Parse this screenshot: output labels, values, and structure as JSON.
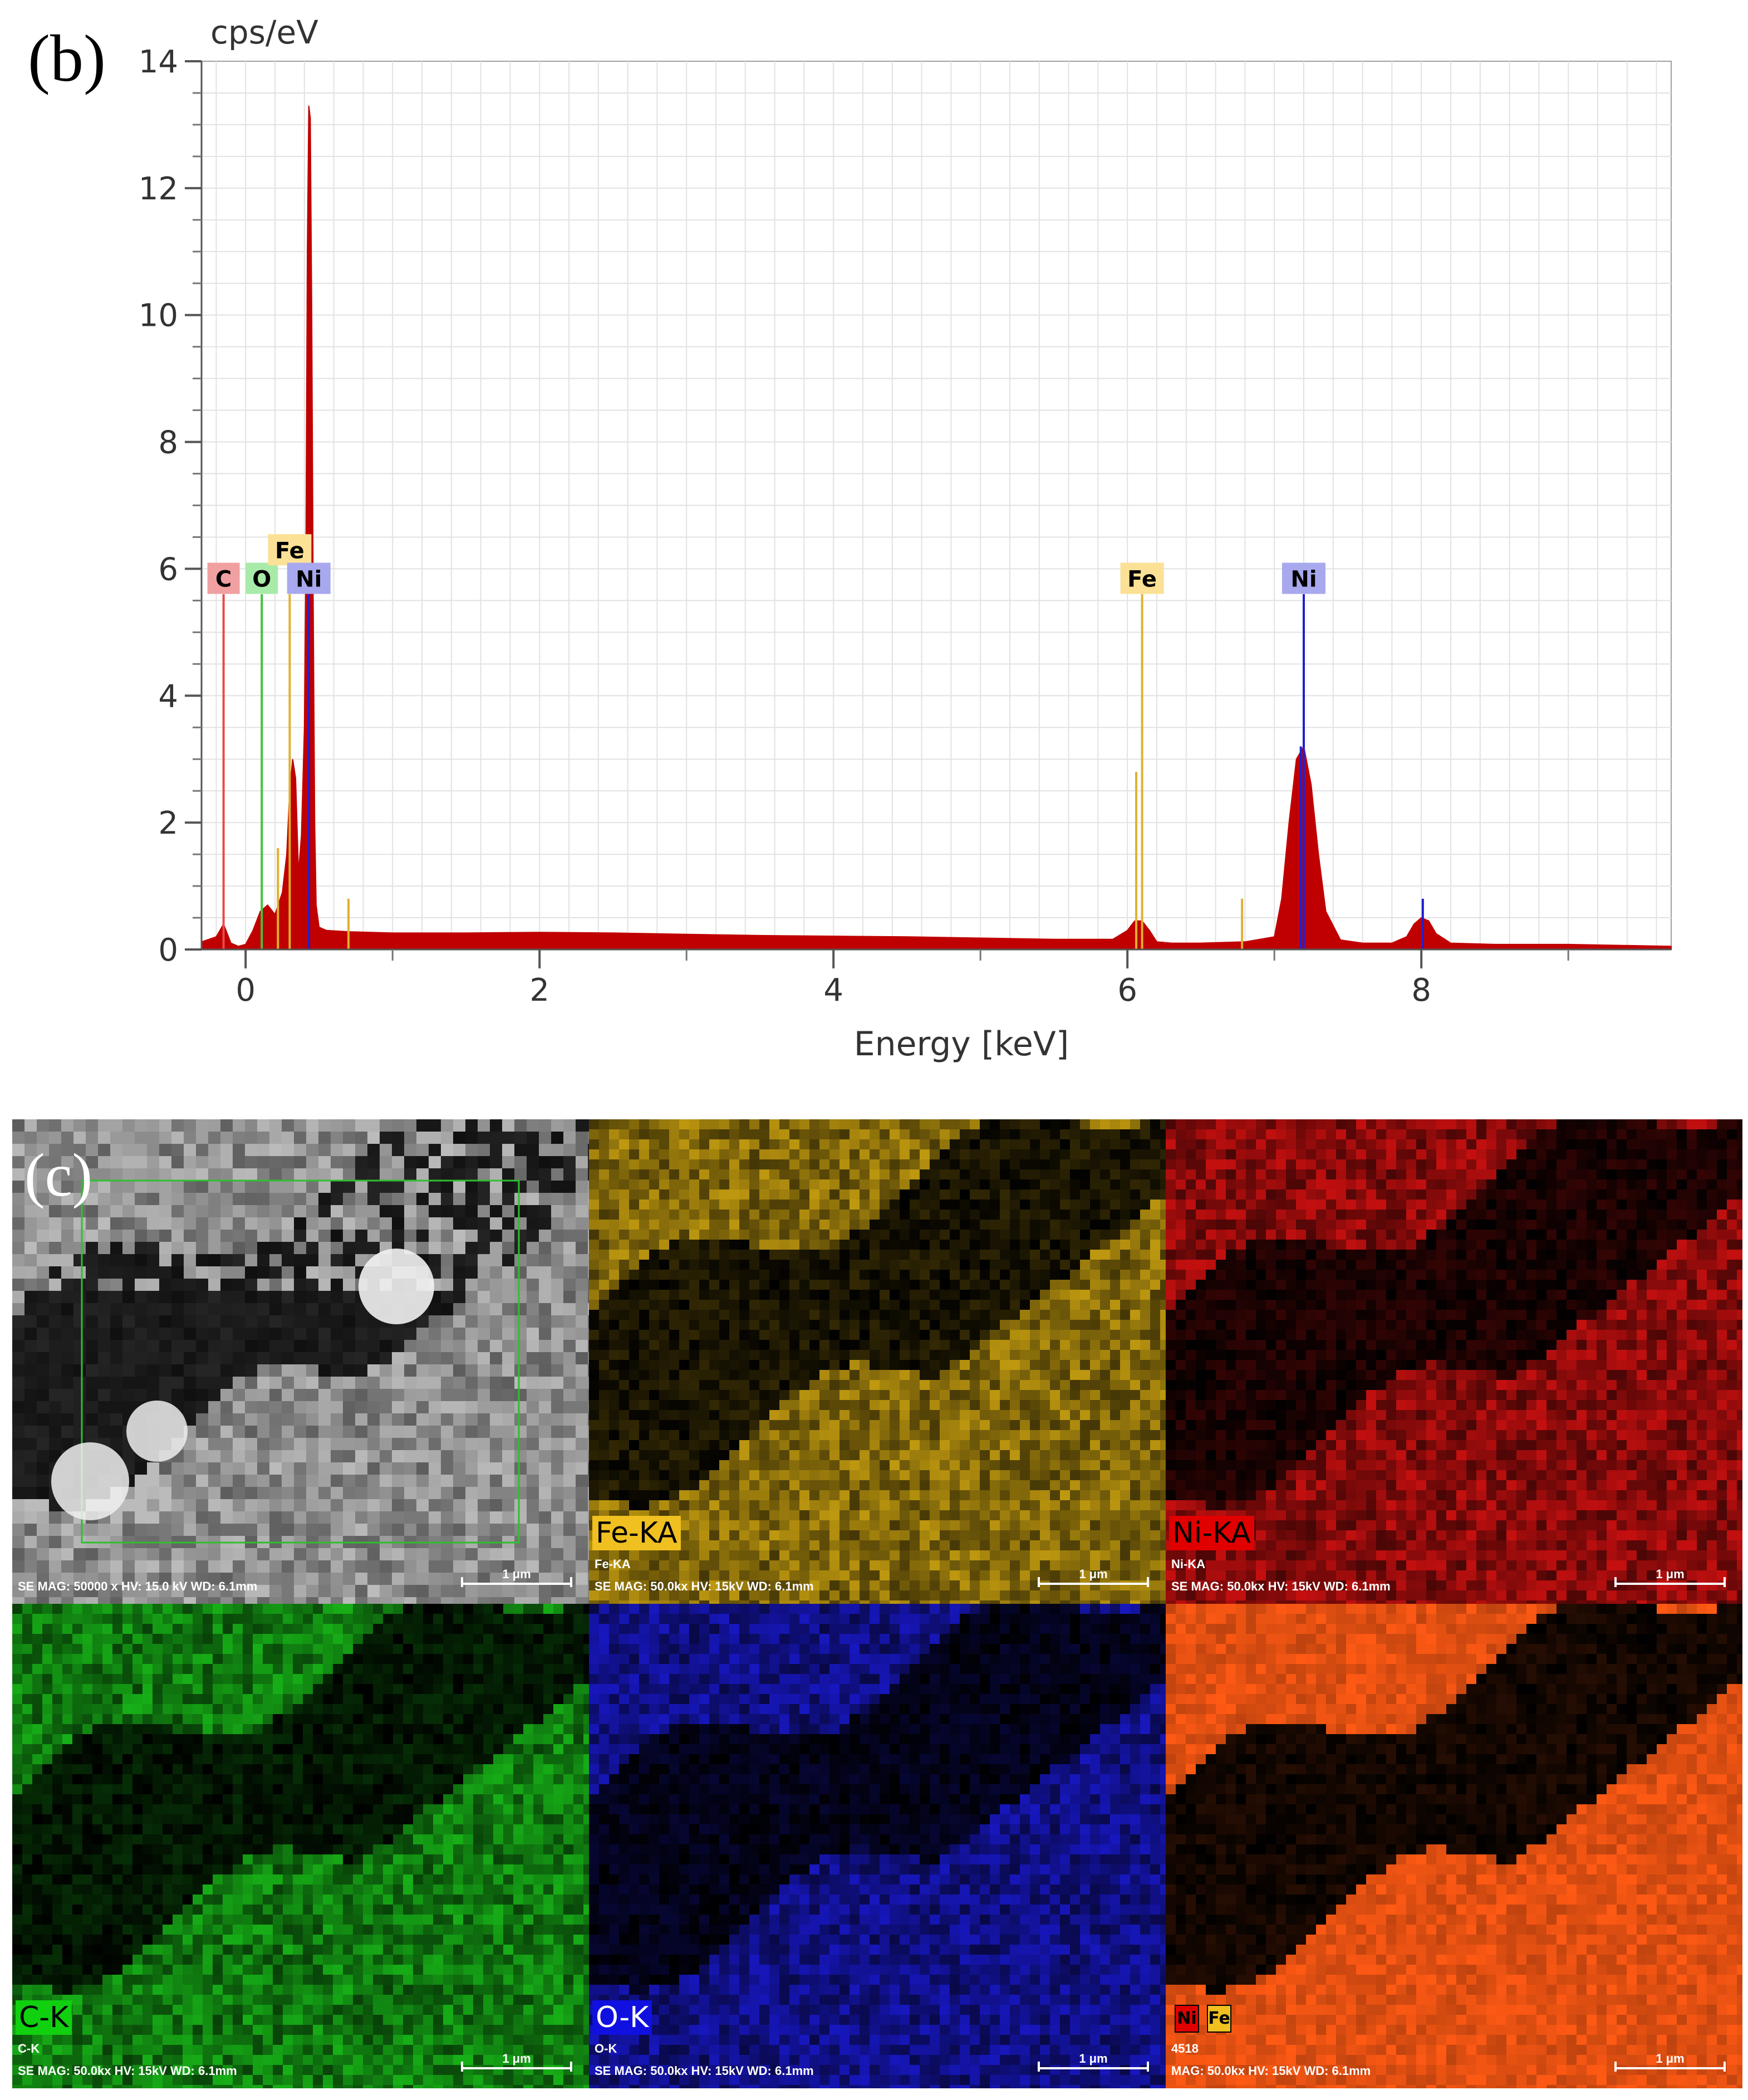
{
  "panel_b": {
    "letter": "(b)",
    "chart_data": {
      "type": "area",
      "ylabel": "cps/eV",
      "xlabel": "Energy [keV]",
      "xlim": [
        -0.3,
        9.7
      ],
      "ylim": [
        0,
        14
      ],
      "x_ticks": [
        "0",
        "2",
        "4",
        "6",
        "8"
      ],
      "x_tick_values": [
        0,
        2,
        4,
        6,
        8
      ],
      "y_ticks": [
        "0",
        "2",
        "4",
        "6",
        "8",
        "10",
        "12",
        "14"
      ],
      "y_tick_values": [
        0,
        2,
        4,
        6,
        8,
        10,
        12,
        14
      ],
      "grid": true,
      "fill_color": "#c00000",
      "series": [
        {
          "x": [
            -0.3,
            -0.2,
            -0.15,
            -0.1,
            -0.05,
            0,
            0.05,
            0.1,
            0.15,
            0.2,
            0.25,
            0.28,
            0.3,
            0.32,
            0.34,
            0.36,
            0.38,
            0.4,
            0.41,
            0.42,
            0.43,
            0.44,
            0.45,
            0.46,
            0.47,
            0.48,
            0.5,
            0.55,
            0.7,
            1.0,
            1.5,
            2.0,
            2.5,
            3.0,
            3.5,
            4.0,
            4.5,
            5.0,
            5.5,
            5.9,
            6.0,
            6.05,
            6.1,
            6.15,
            6.2,
            6.3,
            6.5,
            6.8,
            7.0,
            7.05,
            7.1,
            7.15,
            7.2,
            7.25,
            7.3,
            7.35,
            7.45,
            7.6,
            7.8,
            7.9,
            7.95,
            8.0,
            8.05,
            8.1,
            8.2,
            8.5,
            9.0,
            9.7
          ],
          "y": [
            0.12,
            0.2,
            0.4,
            0.1,
            0.05,
            0.08,
            0.3,
            0.6,
            0.7,
            0.55,
            0.9,
            1.5,
            2.5,
            3.0,
            2.7,
            1.2,
            1.8,
            3.5,
            6.0,
            11.0,
            13.3,
            13.1,
            10.0,
            5.5,
            2.0,
            0.7,
            0.35,
            0.3,
            0.28,
            0.26,
            0.26,
            0.27,
            0.26,
            0.24,
            0.22,
            0.21,
            0.2,
            0.18,
            0.16,
            0.16,
            0.3,
            0.45,
            0.45,
            0.3,
            0.12,
            0.1,
            0.1,
            0.12,
            0.2,
            0.8,
            2.0,
            3.0,
            3.2,
            2.6,
            1.5,
            0.6,
            0.15,
            0.1,
            0.1,
            0.2,
            0.4,
            0.5,
            0.45,
            0.25,
            0.1,
            0.08,
            0.08,
            0.05
          ]
        }
      ],
      "markers": [
        {
          "label": "C",
          "energy": -0.15,
          "height": 5.6,
          "color": "#e84a4a",
          "label_bg": "#f0a0a0",
          "label_y": 5.85
        },
        {
          "label": "O",
          "energy": 0.11,
          "height": 5.6,
          "color": "#3ec43e",
          "label_bg": "#a8eaa8",
          "label_y": 5.85
        },
        {
          "label": "Fe",
          "energy": 0.3,
          "height": 5.6,
          "color": "#e0b030",
          "label_bg": "#fbe196",
          "label_y": 6.3
        },
        {
          "label": "Ni",
          "energy": 0.43,
          "height": 5.6,
          "color": "#2020d0",
          "label_bg": "#a8a8ee",
          "label_y": 5.85
        },
        {
          "label": "Fe",
          "energy": 6.1,
          "height": 5.6,
          "color": "#e0b030",
          "label_bg": "#fbe196",
          "label_y": 5.85
        },
        {
          "label": "Ni",
          "energy": 7.2,
          "height": 5.6,
          "color": "#2020d0",
          "label_bg": "#a8a8ee",
          "label_y": 5.85
        }
      ],
      "minor_lines": [
        {
          "energy": 0.22,
          "height": 1.6,
          "color": "#e0b030"
        },
        {
          "energy": 0.7,
          "height": 0.8,
          "color": "#e0b030"
        },
        {
          "energy": 6.06,
          "height": 2.8,
          "color": "#e0b030"
        },
        {
          "energy": 6.78,
          "height": 0.8,
          "color": "#e0b030"
        },
        {
          "energy": 7.18,
          "height": 3.2,
          "color": "#2020d0"
        },
        {
          "energy": 8.01,
          "height": 0.8,
          "color": "#2020d0"
        }
      ]
    }
  },
  "panel_c": {
    "letter": "(c)",
    "tiles": [
      {
        "kind": "se",
        "label": "",
        "sublabel": "",
        "color": "#cfcfcf",
        "meta": "SE  MAG: 50000 x  HV: 15.0 kV  WD: 6.1mm",
        "scale": "1 μm"
      },
      {
        "kind": "map",
        "label": "Fe-KA",
        "label_bg": "#f0c020",
        "label_fg": "#000000",
        "sublabel": "Fe-KA",
        "color": "#c8a010",
        "meta": "SE  MAG: 50.0kx  HV: 15kV  WD: 6.1mm",
        "scale": "1 μm"
      },
      {
        "kind": "map",
        "label": "Ni-KA",
        "label_bg": "#e00000",
        "label_fg": "#000000",
        "sublabel": "Ni-KA",
        "color": "#d01010",
        "meta": "SE  MAG: 50.0kx  HV: 15kV  WD: 6.1mm",
        "scale": "1 μm"
      },
      {
        "kind": "map",
        "label": "C-K",
        "label_bg": "#10d010",
        "label_fg": "#000000",
        "sublabel": "C-K",
        "color": "#18b818",
        "meta": "SE  MAG: 50.0kx  HV: 15kV  WD: 6.1mm",
        "scale": "1 μm"
      },
      {
        "kind": "map",
        "label": "O-K",
        "label_bg": "#1010e0",
        "label_fg": "#ffffff",
        "sublabel": "O-K",
        "color": "#1818c8",
        "meta": "SE  MAG: 50.0kx  HV: 15kV  WD: 6.1mm",
        "scale": "1 μm"
      },
      {
        "kind": "overlay",
        "label": "",
        "sublabel": "4518",
        "color": "#ff5a14",
        "badges": [
          {
            "text": "Ni",
            "bg": "#e00000"
          },
          {
            "text": "Fe",
            "bg": "#f0c020"
          }
        ],
        "meta": "MAG: 50.0kx  HV: 15kV  WD: 6.1mm",
        "scale": "1 μm"
      }
    ]
  }
}
